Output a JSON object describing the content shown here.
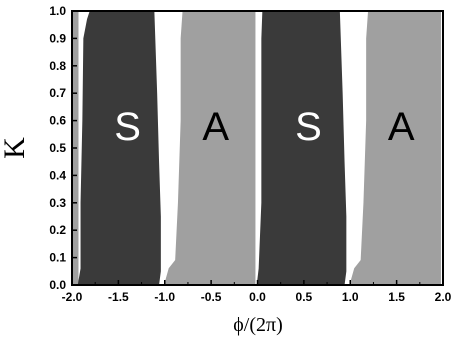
{
  "chart_data": {
    "type": "area",
    "title": "",
    "xlabel": "ϕ/(2π)",
    "ylabel": "K",
    "xlim": [
      -2.0,
      2.0
    ],
    "ylim": [
      0.0,
      1.0
    ],
    "x_ticks": [
      "-2.0",
      "-1.5",
      "-1.0",
      "-0.5",
      "0.0",
      "0.5",
      "1.0",
      "1.5",
      "2.0"
    ],
    "y_ticks": [
      "0.0",
      "0.1",
      "0.2",
      "0.3",
      "0.4",
      "0.5",
      "0.6",
      "0.7",
      "0.8",
      "0.9",
      "1.0"
    ],
    "grid": false,
    "colors": {
      "S": "#3a3a3a",
      "A": "#a0a0a0",
      "gap": "#ffffff",
      "frame": "#000000"
    },
    "regions": [
      {
        "label": "S",
        "period_offset": 0,
        "left_boundary": [
          [
            -1.93,
            0.0
          ],
          [
            -1.9,
            0.06
          ],
          [
            -1.9,
            0.3
          ],
          [
            -1.88,
            0.6
          ],
          [
            -1.87,
            0.9
          ],
          [
            -1.83,
            0.97
          ],
          [
            -1.8,
            1.0
          ]
        ],
        "right_boundary": [
          [
            -1.07,
            0.0
          ],
          [
            -1.05,
            0.05
          ],
          [
            -1.05,
            0.25
          ],
          [
            -1.07,
            0.45
          ],
          [
            -1.09,
            0.7
          ],
          [
            -1.12,
            1.0
          ]
        ]
      },
      {
        "label": "A",
        "period_offset": 0,
        "left_boundary": [
          [
            -1.0,
            0.0
          ],
          [
            -0.95,
            0.06
          ],
          [
            -0.88,
            0.09
          ],
          [
            -0.85,
            0.3
          ],
          [
            -0.82,
            0.6
          ],
          [
            -0.82,
            0.9
          ],
          [
            -0.8,
            1.0
          ]
        ],
        "right_boundary": [
          [
            -0.03,
            0.0
          ],
          [
            -0.03,
            1.0
          ]
        ]
      },
      {
        "label": "S",
        "period_offset": 2,
        "left_boundary": [
          [
            0.0,
            0.0
          ],
          [
            0.02,
            0.06
          ],
          [
            0.05,
            0.3
          ],
          [
            0.05,
            0.6
          ],
          [
            0.05,
            0.9
          ],
          [
            0.06,
            1.0
          ]
        ],
        "right_boundary": [
          [
            0.93,
            0.0
          ],
          [
            0.95,
            0.05
          ],
          [
            0.95,
            0.25
          ],
          [
            0.93,
            0.45
          ],
          [
            0.91,
            0.7
          ],
          [
            0.88,
            1.0
          ]
        ]
      },
      {
        "label": "A",
        "period_offset": 2,
        "left_boundary": [
          [
            1.0,
            0.0
          ],
          [
            1.05,
            0.06
          ],
          [
            1.12,
            0.09
          ],
          [
            1.15,
            0.3
          ],
          [
            1.18,
            0.6
          ],
          [
            1.18,
            0.9
          ],
          [
            1.2,
            1.0
          ]
        ],
        "right_boundary": [
          [
            1.97,
            0.0
          ],
          [
            1.97,
            1.0
          ]
        ]
      }
    ],
    "annotations": [
      {
        "text": "S",
        "x": -1.4,
        "y": 0.58,
        "color": "#ffffff"
      },
      {
        "text": "A",
        "x": -0.45,
        "y": 0.58,
        "color": "#000000"
      },
      {
        "text": "S",
        "x": 0.55,
        "y": 0.58,
        "color": "#ffffff"
      },
      {
        "text": "A",
        "x": 1.55,
        "y": 0.58,
        "color": "#000000"
      }
    ]
  }
}
